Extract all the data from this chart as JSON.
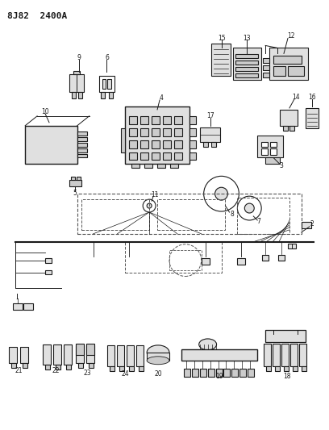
{
  "title": "8J82 2400A",
  "bg_color": "#ffffff",
  "fig_width": 4.08,
  "fig_height": 5.33,
  "dpi": 100,
  "lc": "#1a1a1a",
  "dc": "#555555",
  "gray1": "#cccccc",
  "gray2": "#e0e0e0",
  "gray3": "#aaaaaa"
}
